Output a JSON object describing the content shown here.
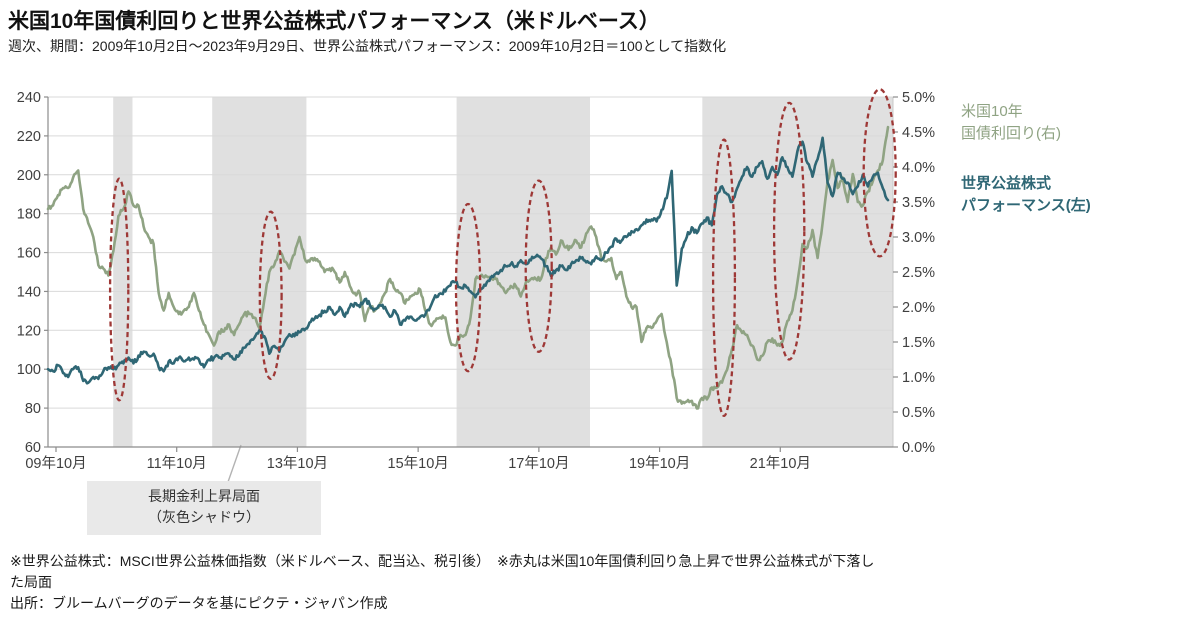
{
  "header": {
    "title": "米国10年国債利回りと世界公益株式パフォーマンス（米ドルベース）",
    "subtitle": "週次、期間：2009年10月2日～2023年9月29日、世界公益株式パフォーマンス：2009年10月2日＝100として指数化"
  },
  "legend": {
    "yield_line1": "米国10年",
    "yield_line2": "国債利回り(右)",
    "index_line1": "世界公益株式",
    "index_line2": "パフォーマンス(左)"
  },
  "annotation_box": {
    "line1": "長期金利上昇局面",
    "line2": "（灰色シャドウ）"
  },
  "footnotes": {
    "note_line1": "※世界公益株式：MSCI世界公益株価指数（米ドルベース、配当込、税引後）　※赤丸は米国10年国債利回り急上昇で世界公益株式が下落し",
    "note_line2": "た局面",
    "source": "出所：ブルームバーグのデータを基にピクテ・ジャパン作成"
  },
  "colors": {
    "yield_line": "#8fa383",
    "index_line": "#2f6775",
    "red_ellipse": "#9e3836",
    "shaded_band": "#e0e0e0",
    "grid_line": "#d9d9d9",
    "axis_line": "#8c8c8c",
    "right_axis_line": "#c9c9c9",
    "tick_text": "#3f3f3f",
    "annotation_bg": "#e9e9e9",
    "callout_line": "#b3b3b3"
  },
  "chart_data": {
    "type": "line",
    "title": "米国10年国債利回りと世界公益株式パフォーマンス（米ドルベース）",
    "frequency_shown": "週次 (recreated from monthly estimates)",
    "x_axis": {
      "start": "2009-10",
      "end": "2023-09",
      "span_years": 14,
      "tick_positions_years": [
        0,
        2,
        4,
        6,
        8,
        10,
        12
      ],
      "tick_labels": [
        "09年10月",
        "11年10月",
        "13年10月",
        "15年10月",
        "17年10月",
        "19年10月",
        "21年10月"
      ]
    },
    "left_axis": {
      "label": "世界公益株式パフォーマンス(左)",
      "min": 60,
      "max": 240,
      "step": 20,
      "tick_labels": [
        "240",
        "220",
        "200",
        "180",
        "160",
        "140",
        "120",
        "100",
        "80",
        "60"
      ]
    },
    "right_axis": {
      "label": "米国10年国債利回り(右)",
      "min": 0.0,
      "max": 5.0,
      "step": 0.5,
      "tick_labels": [
        "5.0%",
        "4.5%",
        "4.0%",
        "3.5%",
        "3.0%",
        "2.5%",
        "2.0%",
        "1.5%",
        "1.0%",
        "0.5%",
        "0.0%"
      ]
    },
    "series": [
      {
        "name": "世界公益株式パフォーマンス(左)",
        "axis": "left",
        "unit": "指数 (2009年10月2日=100)",
        "color": "#2f6775",
        "monthly_values_from_2009_10": [
          100,
          99,
          102,
          98,
          96,
          100,
          101,
          94,
          93,
          96,
          95,
          99,
          101,
          100,
          102,
          103,
          106,
          103,
          107,
          109,
          107,
          108,
          101,
          99,
          104,
          103,
          106,
          104,
          106,
          105,
          105,
          101,
          105,
          106,
          106,
          107,
          108,
          105,
          107,
          111,
          113,
          116,
          120,
          117,
          108,
          112,
          109,
          114,
          118,
          117,
          119,
          120,
          124,
          126,
          128,
          130,
          132,
          128,
          132,
          127,
          132,
          134,
          132,
          136,
          133,
          131,
          133,
          132,
          127,
          130,
          123,
          125,
          127,
          125,
          127,
          128,
          132,
          138,
          139,
          140,
          143,
          145,
          142,
          143,
          140,
          137,
          141,
          143,
          147,
          149,
          151,
          153,
          154,
          153,
          156,
          154,
          156,
          158,
          157,
          153,
          148,
          151,
          153,
          151,
          154,
          156,
          157,
          155,
          154,
          158,
          156,
          160,
          163,
          167,
          166,
          168,
          171,
          172,
          174,
          177,
          177,
          176,
          182,
          188,
          202,
          143,
          162,
          168,
          173,
          170,
          175,
          178,
          174,
          190,
          194,
          190,
          186,
          193,
          199,
          204,
          199,
          204,
          207,
          198,
          204,
          200,
          209,
          204,
          199,
          212,
          217,
          206,
          199,
          208,
          219,
          196,
          189,
          201,
          198,
          196,
          190,
          194,
          200,
          194,
          199,
          201,
          193,
          187
        ]
      },
      {
        "name": "米国10年国債利回り(右)",
        "axis": "right",
        "unit": "%",
        "color": "#8fa383",
        "monthly_values_from_2009_10": [
          3.4,
          3.45,
          3.6,
          3.7,
          3.7,
          3.85,
          3.95,
          3.4,
          3.2,
          3.0,
          2.6,
          2.55,
          2.45,
          2.8,
          3.3,
          3.4,
          3.65,
          3.45,
          3.45,
          3.15,
          3.0,
          2.9,
          2.2,
          1.95,
          2.2,
          2.0,
          1.9,
          1.95,
          2.0,
          2.2,
          1.95,
          1.75,
          1.6,
          1.45,
          1.65,
          1.65,
          1.75,
          1.6,
          1.75,
          1.9,
          1.9,
          1.85,
          1.7,
          2.1,
          2.5,
          2.6,
          2.8,
          2.65,
          2.55,
          2.75,
          3.0,
          2.7,
          2.65,
          2.7,
          2.65,
          2.5,
          2.55,
          2.5,
          2.35,
          2.5,
          2.3,
          2.2,
          2.2,
          1.8,
          2.0,
          1.95,
          2.05,
          2.2,
          2.4,
          2.25,
          2.2,
          2.05,
          2.15,
          2.2,
          2.25,
          1.95,
          1.75,
          1.8,
          1.85,
          1.85,
          1.5,
          1.45,
          1.6,
          1.6,
          1.85,
          2.4,
          2.45,
          2.45,
          2.4,
          2.4,
          2.3,
          2.2,
          2.3,
          2.3,
          2.15,
          2.35,
          2.4,
          2.4,
          2.4,
          2.7,
          2.85,
          2.75,
          2.95,
          2.85,
          2.85,
          2.95,
          2.85,
          3.05,
          3.15,
          3.0,
          2.7,
          2.65,
          2.7,
          2.4,
          2.5,
          2.15,
          2.0,
          2.0,
          1.5,
          1.7,
          1.7,
          1.8,
          1.9,
          1.5,
          1.15,
          0.7,
          0.62,
          0.65,
          0.66,
          0.55,
          0.7,
          0.68,
          0.85,
          0.85,
          0.92,
          1.1,
          1.4,
          1.74,
          1.63,
          1.6,
          1.45,
          1.25,
          1.3,
          1.5,
          1.55,
          1.45,
          1.5,
          1.8,
          1.95,
          2.35,
          2.9,
          2.85,
          3.1,
          2.7,
          3.2,
          3.8,
          4.1,
          3.7,
          3.85,
          3.5,
          3.9,
          3.5,
          3.45,
          3.65,
          3.8,
          3.95,
          4.1,
          4.57
        ]
      }
    ],
    "shaded_periods_years_from_start": [
      [
        1.08,
        1.4
      ],
      [
        2.72,
        4.28
      ],
      [
        6.77,
        8.98
      ],
      [
        10.84,
        14.0
      ]
    ],
    "shaded_meaning": "長期金利上昇局面（灰色シャドウ）",
    "red_ellipses_meaning": "赤丸は米国10年国債利回り急上昇で世界公益株式が下落した局面",
    "red_ellipses": [
      {
        "t": 1.18,
        "v": 141,
        "rt": 0.15,
        "rv": 57
      },
      {
        "t": 3.69,
        "v": 138,
        "rt": 0.18,
        "rv": 43
      },
      {
        "t": 6.96,
        "v": 142,
        "rt": 0.2,
        "rv": 43
      },
      {
        "t": 8.13,
        "v": 153,
        "rt": 0.215,
        "rv": 44
      },
      {
        "t": 11.2,
        "v": 147,
        "rt": 0.18,
        "rv": 71
      },
      {
        "t": 12.28,
        "v": 171,
        "rt": 0.25,
        "rv": 66
      },
      {
        "t": 13.78,
        "v": 201,
        "rt": 0.265,
        "rv": 43
      }
    ]
  }
}
